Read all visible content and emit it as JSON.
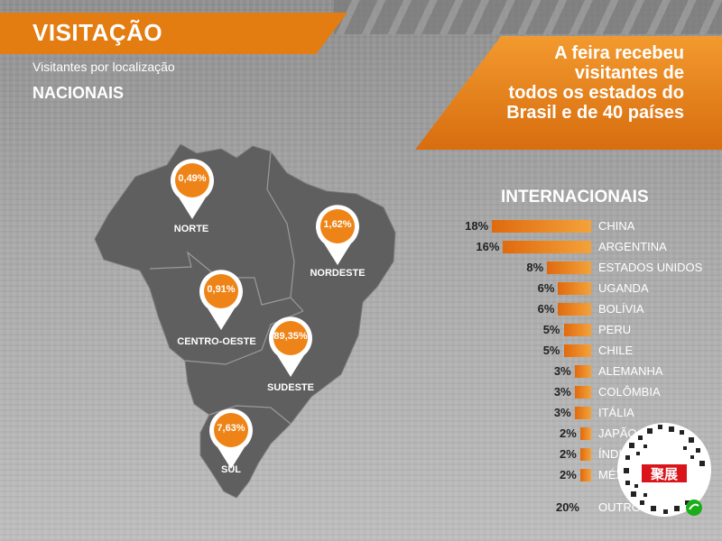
{
  "title": "VISITAÇÃO",
  "subtitle": "Visitantes por localização",
  "national_heading": "NACIONAIS",
  "headline": [
    "A feira recebeu",
    "visitantes de",
    "todos os estados do",
    "Brasil e de 40 países"
  ],
  "international_heading": "INTERNACIONAIS",
  "colors": {
    "accent": "#e37d12",
    "bar_light": "#f4a23a",
    "map": "#5f5f5f"
  },
  "qr_badge_text": "聚展",
  "chart_data": [
    {
      "type": "map",
      "title": "NACIONAIS",
      "regions": [
        {
          "name": "NORTE",
          "value": "0,49%"
        },
        {
          "name": "NORDESTE",
          "value": "1,62%"
        },
        {
          "name": "CENTRO-OESTE",
          "value": "0,91%"
        },
        {
          "name": "SUDESTE",
          "value": "89,35%"
        },
        {
          "name": "SUL",
          "value": "7,63%"
        }
      ]
    },
    {
      "type": "bar",
      "title": "INTERNACIONAIS",
      "unit": "%",
      "categories": [
        "CHINA",
        "ARGENTINA",
        "ESTADOS UNIDOS",
        "UGANDA",
        "BOLÍVIA",
        "PERU",
        "CHILE",
        "ALEMANHA",
        "COLÔMBIA",
        "ITÁLIA",
        "JAPÃO",
        "ÍNDIA",
        "MÉXICO",
        "OUTROS"
      ],
      "values": [
        18,
        16,
        8,
        6,
        6,
        5,
        5,
        3,
        3,
        3,
        2,
        2,
        2,
        20
      ],
      "labels": [
        "18%",
        "16%",
        "8%",
        "6%",
        "6%",
        "5%",
        "5%",
        "3%",
        "3%",
        "3%",
        "2%",
        "2%",
        "2%",
        "20%"
      ]
    }
  ]
}
